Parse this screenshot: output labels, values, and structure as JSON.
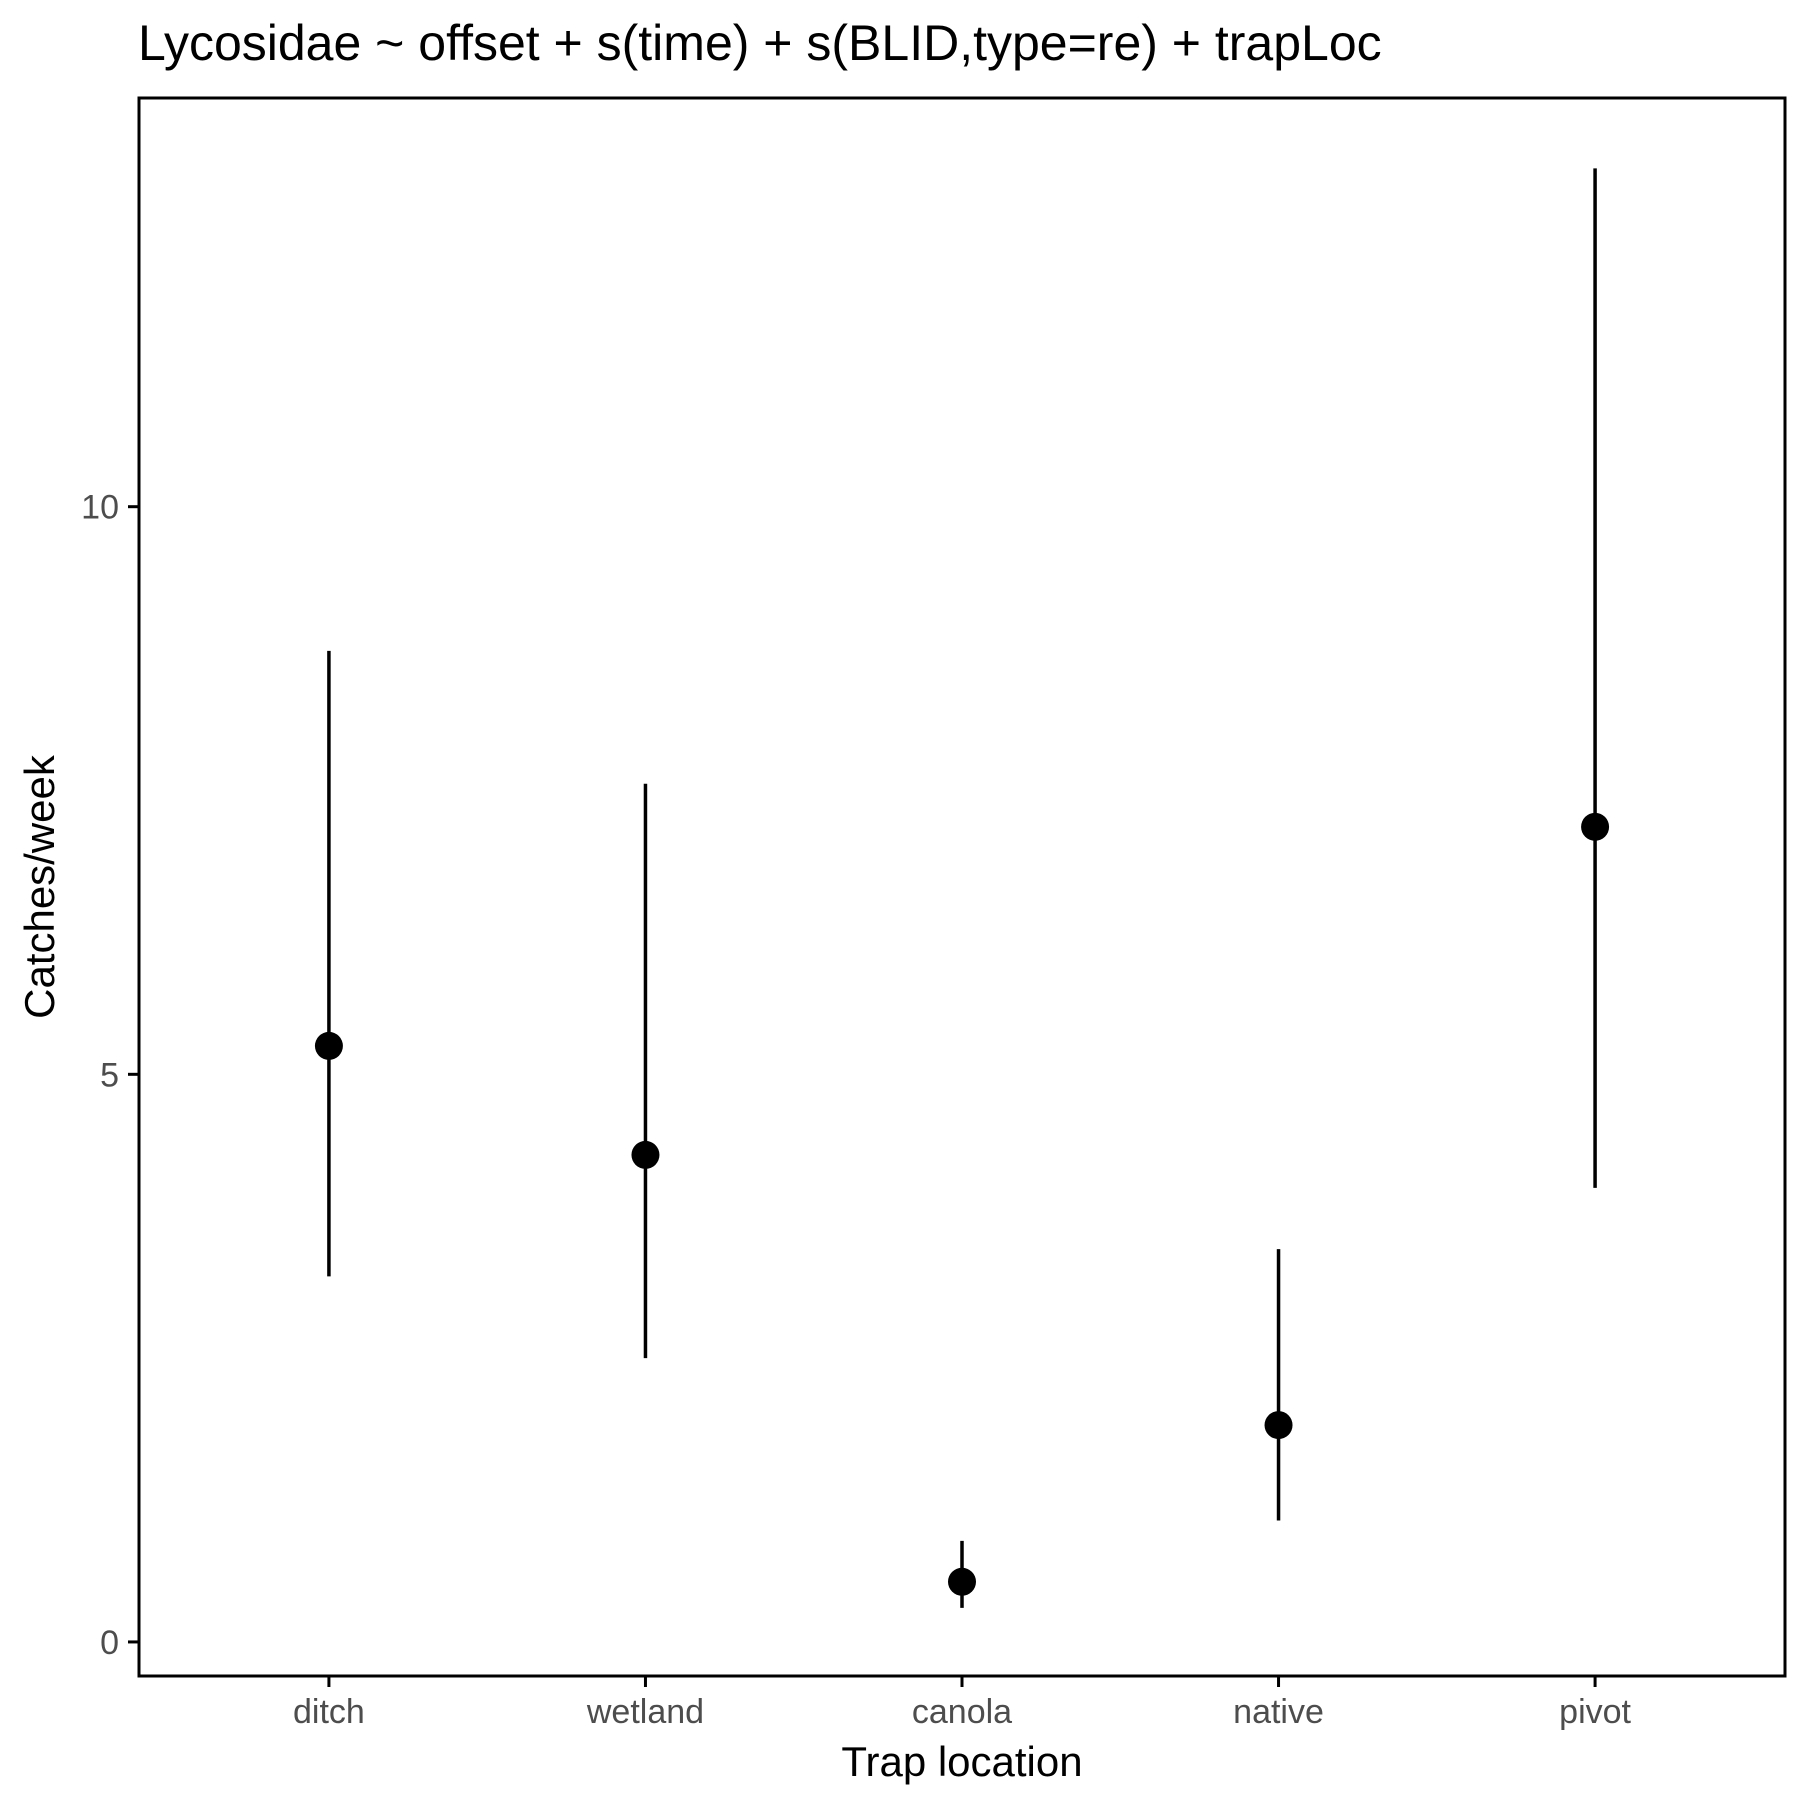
{
  "chart_data": {
    "type": "scatter",
    "title": "Lycosidae ~ offset + s(time) + s(BLID,type=re) + trapLoc",
    "xlabel": "Trap location",
    "ylabel": "Catches/week",
    "categories": [
      "ditch",
      "wetland",
      "canola",
      "native",
      "pivot"
    ],
    "series": [
      {
        "estimate": [
          5.25,
          4.29,
          0.53,
          1.91,
          7.18
        ],
        "lower": [
          3.22,
          2.5,
          0.3,
          1.07,
          4.0
        ],
        "upper": [
          8.73,
          7.56,
          0.89,
          3.46,
          12.98
        ]
      }
    ],
    "yticks": [
      0,
      5,
      10
    ],
    "ylim": [
      -0.3,
      13.6
    ],
    "grid": false,
    "legend": "none",
    "colors": {
      "point": "#000000",
      "errorbar": "#000000",
      "panel_border": "#000000",
      "tick_label": "#4d4d4d",
      "background": "#ffffff"
    }
  }
}
